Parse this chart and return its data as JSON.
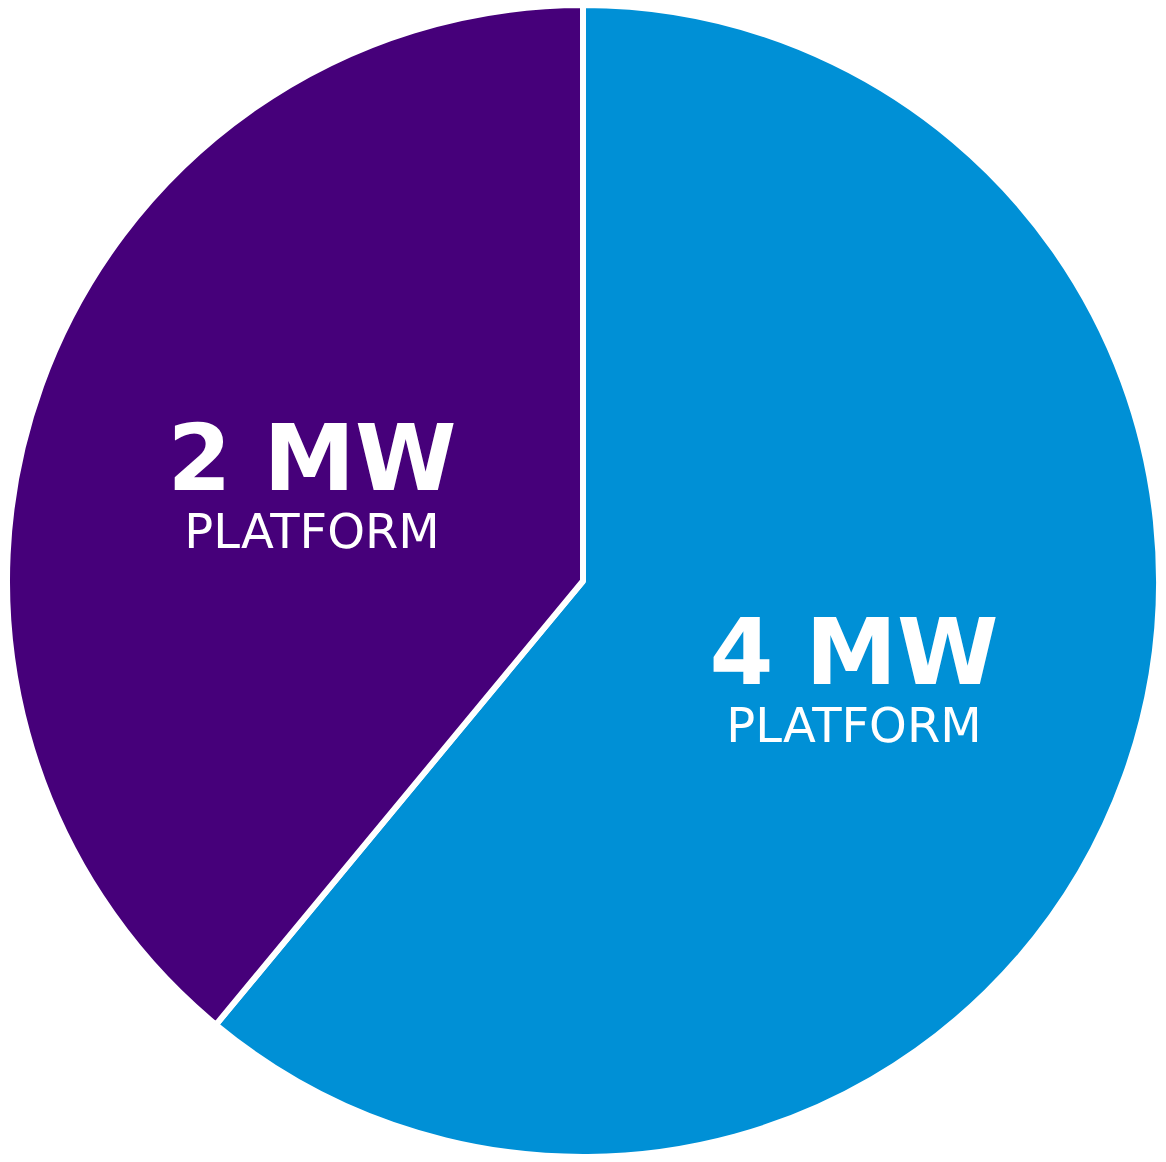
{
  "chart_data": {
    "type": "pie",
    "categories": [
      "4 MW PLATFORM",
      "2 MW PLATFORM"
    ],
    "values": [
      61,
      39
    ],
    "colors": [
      "#0090d6",
      "#46007a"
    ]
  }
}
